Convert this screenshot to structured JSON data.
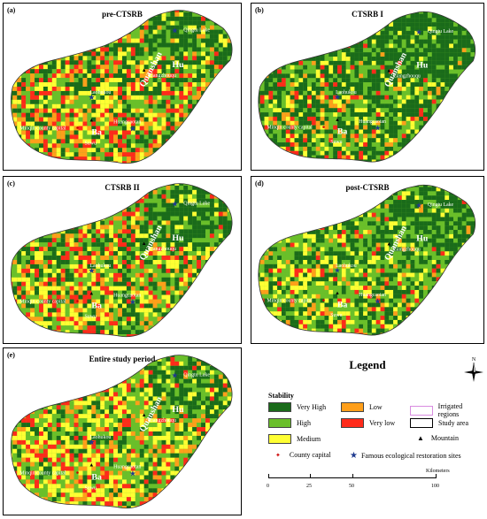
{
  "panels": [
    {
      "tag": "(a)",
      "title": "pre-CTSRB",
      "mix": [
        0.25,
        0.25,
        0.22,
        0.13,
        0.15
      ]
    },
    {
      "tag": "(b)",
      "title": "CTSRB I",
      "mix": [
        0.55,
        0.25,
        0.1,
        0.05,
        0.05
      ]
    },
    {
      "tag": "(c)",
      "title": "CTSRB II",
      "mix": [
        0.3,
        0.25,
        0.2,
        0.12,
        0.13
      ]
    },
    {
      "tag": "(d)",
      "title": "post-CTSRB",
      "mix": [
        0.35,
        0.35,
        0.18,
        0.06,
        0.06
      ]
    },
    {
      "tag": "(e)",
      "title": "Entire study period",
      "mix": [
        0.2,
        0.3,
        0.25,
        0.12,
        0.13
      ]
    }
  ],
  "map_labels": {
    "qingtu": "Qingtu Lake",
    "hu": "Hu",
    "qua": "Quanshan",
    "liang": "Liangzhouqu",
    "laohu": "Laohukou",
    "minqin": "Minqin county capital",
    "ba": "Ba",
    "huang": "Huangcaotan",
    "sowo": "Suwu"
  },
  "legend": {
    "title": "Legend",
    "stability_heading": "Stability",
    "classes": [
      {
        "label": "Very High",
        "color": "#1a6b1a"
      },
      {
        "label": "High",
        "color": "#6abf2a"
      },
      {
        "label": "Medium",
        "color": "#ffff33"
      },
      {
        "label": "Low",
        "color": "#ff9f1a"
      },
      {
        "label": "Very low",
        "color": "#ff2a1a"
      }
    ],
    "irrigated": "Irrigated regions",
    "study_area": "Study area",
    "mountain": "Mountain",
    "county_capital": "County capital",
    "restoration": "Famous ecological restoration sites",
    "north": "N",
    "scale_ticks": [
      "0",
      "25",
      "50",
      "100"
    ],
    "scale_unit": "Kilometers"
  }
}
